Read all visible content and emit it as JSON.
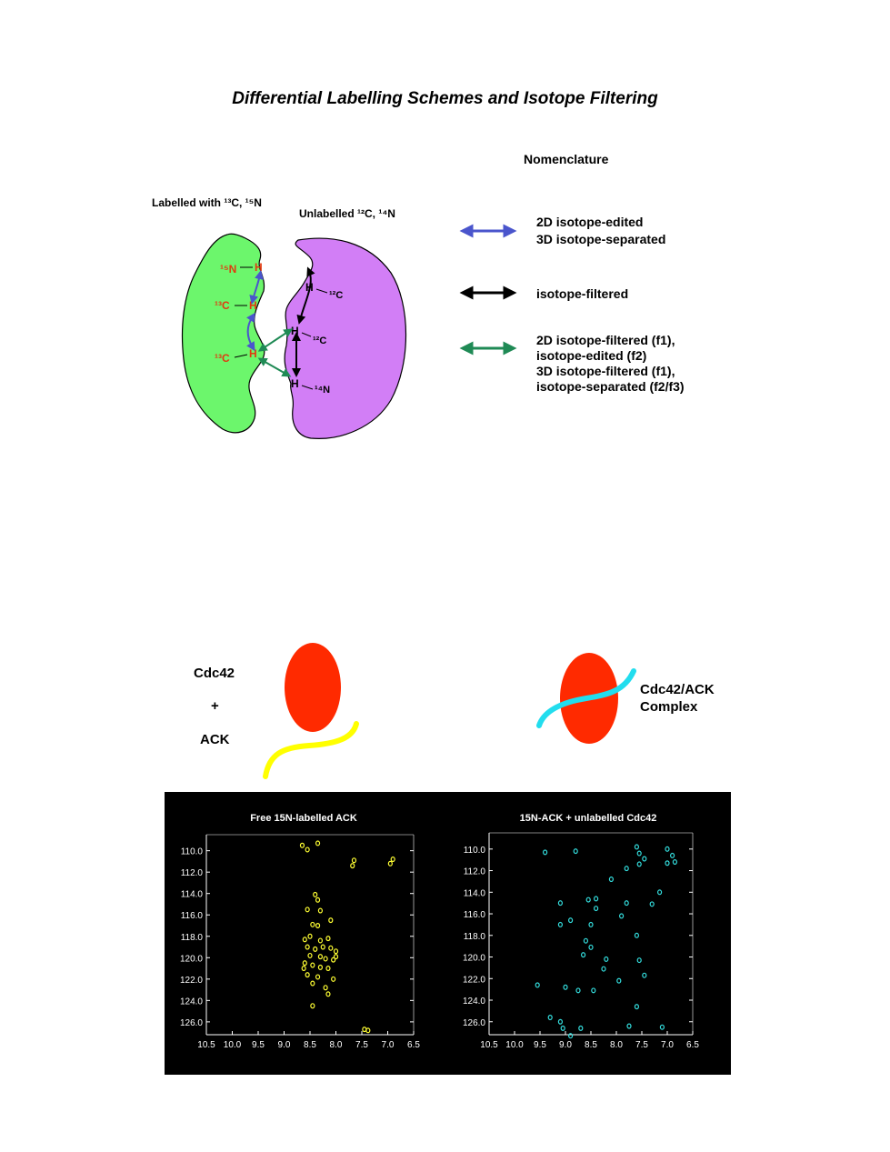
{
  "title": "Differential Labelling Schemes and Isotope Filtering",
  "nomenclature": {
    "heading": "Nomenclature",
    "items": [
      {
        "color": "#4a55cc",
        "lines": [
          "2D isotope-edited",
          "3D isotope-separated"
        ]
      },
      {
        "color": "#000000",
        "lines": [
          "isotope-filtered"
        ]
      },
      {
        "color": "#1f8a55",
        "lines": [
          "2D isotope-filtered (f1),",
          "isotope-edited (f2)",
          "3D isotope-filtered (f1),",
          "isotope-separated (f2/f3)"
        ]
      }
    ]
  },
  "labelled_protein": {
    "label": "Labelled with ¹³C, ¹⁵N",
    "color": "#6cf66c",
    "atoms": [
      {
        "nucleus": "¹⁵N",
        "h": "H"
      },
      {
        "nucleus": "¹³C",
        "h": "H"
      },
      {
        "nucleus": "¹³C",
        "h": "H"
      }
    ]
  },
  "unlabelled_protein": {
    "label": "Unlabelled ¹²C, ¹⁴N",
    "color": "#d27ef6",
    "atoms": [
      {
        "h": "H",
        "nucleus": "¹²C"
      },
      {
        "h": "H",
        "nucleus": "¹²C"
      },
      {
        "h": "H",
        "nucleus": "¹⁴N"
      }
    ]
  },
  "cartoon": {
    "left_lines": [
      "Cdc42",
      "+",
      "ACK"
    ],
    "right_lines": [
      "Cdc42/ACK",
      "Complex"
    ],
    "protein_color": "#ff2a00",
    "free_peptide_color": "#ffff00",
    "complex_peptide_color": "#22ddee"
  },
  "spectra": [
    {
      "title": "Free 15N-labelled ACK",
      "peak_color": "#ffff33",
      "y_ticks": [
        "110.0",
        "112.0",
        "114.0",
        "116.0",
        "118.0",
        "120.0",
        "122.0",
        "124.0",
        "126.0"
      ],
      "x_ticks": [
        "10.5",
        "10.0",
        "9.5",
        "9.0",
        "8.5",
        "8.0",
        "7.5",
        "7.0",
        "6.5"
      ],
      "xlim": [
        10.5,
        6.5
      ],
      "ylim": [
        108.5,
        127.2
      ],
      "peaks": [
        [
          8.65,
          109.5
        ],
        [
          8.55,
          109.9
        ],
        [
          8.35,
          109.3
        ],
        [
          7.65,
          110.9
        ],
        [
          7.68,
          111.4
        ],
        [
          6.9,
          110.8
        ],
        [
          6.95,
          111.2
        ],
        [
          8.4,
          114.1
        ],
        [
          8.35,
          114.6
        ],
        [
          8.55,
          115.5
        ],
        [
          8.3,
          115.6
        ],
        [
          8.45,
          116.9
        ],
        [
          8.35,
          117.0
        ],
        [
          8.1,
          116.5
        ],
        [
          8.5,
          118.0
        ],
        [
          8.6,
          118.3
        ],
        [
          8.3,
          118.4
        ],
        [
          8.15,
          118.2
        ],
        [
          8.55,
          119.0
        ],
        [
          8.4,
          119.2
        ],
        [
          8.25,
          119.0
        ],
        [
          8.1,
          119.1
        ],
        [
          8.0,
          119.4
        ],
        [
          8.5,
          119.8
        ],
        [
          8.3,
          119.9
        ],
        [
          8.2,
          120.1
        ],
        [
          8.05,
          120.2
        ],
        [
          8.6,
          120.5
        ],
        [
          8.45,
          120.7
        ],
        [
          8.3,
          120.9
        ],
        [
          8.15,
          121.0
        ],
        [
          8.55,
          121.6
        ],
        [
          8.35,
          121.8
        ],
        [
          8.05,
          122.0
        ],
        [
          8.45,
          122.4
        ],
        [
          8.2,
          122.8
        ],
        [
          8.15,
          123.4
        ],
        [
          8.45,
          124.5
        ],
        [
          8.0,
          119.9
        ],
        [
          8.62,
          121.0
        ],
        [
          7.45,
          126.7
        ],
        [
          7.38,
          126.8
        ]
      ]
    },
    {
      "title": "15N-ACK + unlabelled Cdc42",
      "peak_color": "#33dddd",
      "y_ticks": [
        "110.0",
        "112.0",
        "114.0",
        "116.0",
        "118.0",
        "120.0",
        "122.0",
        "124.0",
        "126.0"
      ],
      "x_ticks": [
        "10.5",
        "10.0",
        "9.5",
        "9.0",
        "8.5",
        "8.0",
        "7.5",
        "7.0",
        "6.5"
      ],
      "xlim": [
        10.5,
        6.5
      ],
      "ylim": [
        108.5,
        127.2
      ],
      "peaks": [
        [
          9.4,
          110.3
        ],
        [
          8.8,
          110.2
        ],
        [
          7.6,
          109.8
        ],
        [
          7.55,
          110.4
        ],
        [
          7.45,
          110.9
        ],
        [
          7.55,
          111.4
        ],
        [
          7.0,
          110.0
        ],
        [
          6.9,
          110.6
        ],
        [
          7.0,
          111.3
        ],
        [
          6.85,
          111.2
        ],
        [
          7.8,
          111.8
        ],
        [
          8.1,
          112.8
        ],
        [
          8.4,
          114.6
        ],
        [
          8.55,
          114.7
        ],
        [
          9.1,
          115.0
        ],
        [
          8.4,
          115.5
        ],
        [
          7.8,
          115.0
        ],
        [
          7.3,
          115.1
        ],
        [
          7.15,
          114.0
        ],
        [
          8.9,
          116.6
        ],
        [
          9.1,
          117.0
        ],
        [
          8.5,
          117.0
        ],
        [
          7.9,
          116.2
        ],
        [
          7.6,
          118.0
        ],
        [
          8.6,
          118.5
        ],
        [
          8.5,
          119.1
        ],
        [
          8.65,
          119.8
        ],
        [
          8.2,
          120.2
        ],
        [
          7.55,
          120.3
        ],
        [
          8.25,
          121.1
        ],
        [
          7.45,
          121.7
        ],
        [
          7.95,
          122.2
        ],
        [
          8.45,
          123.1
        ],
        [
          9.55,
          122.6
        ],
        [
          9.0,
          122.8
        ],
        [
          8.75,
          123.1
        ],
        [
          7.6,
          124.6
        ],
        [
          9.3,
          125.6
        ],
        [
          9.1,
          126.0
        ],
        [
          9.05,
          126.6
        ],
        [
          8.7,
          126.6
        ],
        [
          7.75,
          126.4
        ],
        [
          7.1,
          126.5
        ],
        [
          8.9,
          127.3
        ]
      ]
    }
  ]
}
